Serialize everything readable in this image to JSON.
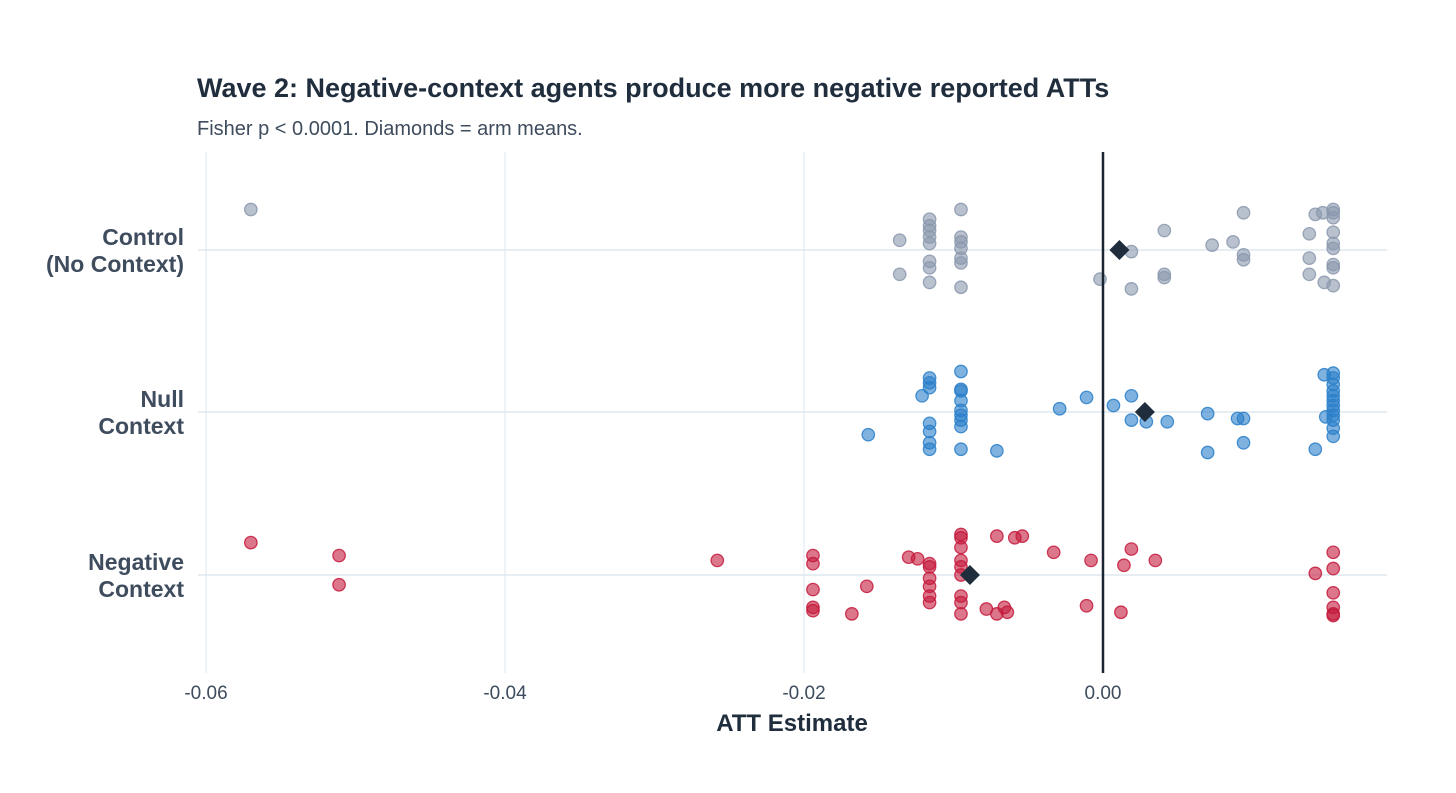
{
  "chart_data": {
    "type": "scatter",
    "title": "Wave 2: Negative-context agents produce more negative reported ATTs",
    "subtitle": "Fisher p < 0.0001. Diamonds = arm means.",
    "xlabel": "ATT Estimate",
    "ylabel": "",
    "xlim": [
      -0.0615,
      0.019
    ],
    "xticks": [
      -0.06,
      -0.04,
      -0.02,
      0.0
    ],
    "xtick_labels": [
      "-0.06",
      "-0.04",
      "-0.02",
      "0.00"
    ],
    "reference_line_x": 0.0,
    "grid": true,
    "legend": "none",
    "point_format": "[ATT estimate, vertical jitter in category units (+ = up)]",
    "mean_marker": "diamond",
    "colors": {
      "control": "#8a98ad",
      "null": "#2a7fc9",
      "negative": "#c41a3c",
      "mean": "#1f2d3d",
      "zero_line": "#1a2433",
      "grid": "#dde7ef"
    },
    "series": [
      {
        "key": "control",
        "name_lines": [
          "Control",
          "(No Context)"
        ],
        "mean": 0.0011,
        "points": [
          [
            -0.057,
            0.25
          ],
          [
            -0.0136,
            0.06
          ],
          [
            -0.0136,
            -0.15
          ],
          [
            -0.0116,
            0.19
          ],
          [
            -0.0116,
            0.15
          ],
          [
            -0.0116,
            0.12
          ],
          [
            -0.0116,
            0.08
          ],
          [
            -0.0116,
            0.04
          ],
          [
            -0.0116,
            -0.07
          ],
          [
            -0.0116,
            -0.11
          ],
          [
            -0.0116,
            -0.2
          ],
          [
            -0.0095,
            0.25
          ],
          [
            -0.0095,
            0.08
          ],
          [
            -0.0095,
            0.05
          ],
          [
            -0.0095,
            0.01
          ],
          [
            -0.0095,
            -0.05
          ],
          [
            -0.0095,
            -0.08
          ],
          [
            -0.0095,
            -0.23
          ],
          [
            -0.0002,
            -0.18
          ],
          [
            0.0019,
            -0.01
          ],
          [
            0.0019,
            -0.24
          ],
          [
            0.0041,
            0.12
          ],
          [
            0.0041,
            -0.15
          ],
          [
            0.0041,
            -0.17
          ],
          [
            0.0073,
            0.03
          ],
          [
            0.0087,
            0.05
          ],
          [
            0.0094,
            0.23
          ],
          [
            0.0094,
            -0.03
          ],
          [
            0.0094,
            -0.06
          ],
          [
            0.0138,
            0.1
          ],
          [
            0.0138,
            -0.05
          ],
          [
            0.0138,
            -0.15
          ],
          [
            0.0142,
            0.22
          ],
          [
            0.0147,
            0.23
          ],
          [
            0.0154,
            0.25
          ],
          [
            0.0154,
            0.23
          ],
          [
            0.0154,
            0.2
          ],
          [
            0.0154,
            0.11
          ],
          [
            0.0154,
            0.04
          ],
          [
            0.0154,
            0.01
          ],
          [
            0.0154,
            -0.09
          ],
          [
            0.0154,
            -0.11
          ],
          [
            0.0154,
            -0.22
          ],
          [
            0.0148,
            -0.2
          ]
        ]
      },
      {
        "key": "null",
        "name_lines": [
          "Null",
          "Context"
        ],
        "mean": 0.0028,
        "points": [
          [
            -0.0157,
            -0.14
          ],
          [
            -0.0121,
            0.1
          ],
          [
            -0.0116,
            0.21
          ],
          [
            -0.0116,
            0.18
          ],
          [
            -0.0116,
            0.15
          ],
          [
            -0.0116,
            -0.07
          ],
          [
            -0.0116,
            -0.12
          ],
          [
            -0.0116,
            -0.19
          ],
          [
            -0.0116,
            -0.23
          ],
          [
            -0.0095,
            0.25
          ],
          [
            -0.0095,
            0.14
          ],
          [
            -0.0095,
            0.13
          ],
          [
            -0.0095,
            0.07
          ],
          [
            -0.0095,
            0.01
          ],
          [
            -0.0095,
            -0.02
          ],
          [
            -0.0095,
            -0.05
          ],
          [
            -0.0095,
            -0.09
          ],
          [
            -0.0095,
            -0.23
          ],
          [
            -0.0071,
            -0.24
          ],
          [
            -0.0029,
            0.02
          ],
          [
            -0.0011,
            0.09
          ],
          [
            0.0007,
            0.04
          ],
          [
            0.0019,
            0.1
          ],
          [
            0.0019,
            -0.05
          ],
          [
            0.0029,
            -0.06
          ],
          [
            0.0043,
            -0.06
          ],
          [
            0.007,
            -0.01
          ],
          [
            0.007,
            -0.25
          ],
          [
            0.009,
            -0.04
          ],
          [
            0.0094,
            -0.04
          ],
          [
            0.0094,
            -0.19
          ],
          [
            0.0142,
            -0.23
          ],
          [
            0.0148,
            0.23
          ],
          [
            0.0154,
            0.24
          ],
          [
            0.0154,
            0.21
          ],
          [
            0.0154,
            0.17
          ],
          [
            0.0154,
            0.13
          ],
          [
            0.0154,
            0.1
          ],
          [
            0.0154,
            0.07
          ],
          [
            0.0154,
            0.04
          ],
          [
            0.0154,
            0.01
          ],
          [
            0.0154,
            -0.02
          ],
          [
            0.0154,
            -0.05
          ],
          [
            0.0154,
            -0.1
          ],
          [
            0.0154,
            -0.15
          ],
          [
            0.0149,
            -0.03
          ]
        ]
      },
      {
        "key": "negative",
        "name_lines": [
          "Negative",
          "Context"
        ],
        "mean": -0.0089,
        "points": [
          [
            -0.057,
            0.2
          ],
          [
            -0.0511,
            0.12
          ],
          [
            -0.0511,
            -0.06
          ],
          [
            -0.0258,
            0.09
          ],
          [
            -0.0194,
            0.12
          ],
          [
            -0.0194,
            0.07
          ],
          [
            -0.0194,
            -0.09
          ],
          [
            -0.0194,
            -0.2
          ],
          [
            -0.0194,
            -0.22
          ],
          [
            -0.0168,
            -0.24
          ],
          [
            -0.0158,
            -0.07
          ],
          [
            -0.013,
            0.11
          ],
          [
            -0.0124,
            0.1
          ],
          [
            -0.0116,
            0.07
          ],
          [
            -0.0116,
            0.05
          ],
          [
            -0.0116,
            -0.02
          ],
          [
            -0.0116,
            -0.07
          ],
          [
            -0.0116,
            -0.13
          ],
          [
            -0.0116,
            -0.17
          ],
          [
            -0.0095,
            0.25
          ],
          [
            -0.0095,
            0.23
          ],
          [
            -0.0095,
            0.17
          ],
          [
            -0.0095,
            0.09
          ],
          [
            -0.0095,
            0.05
          ],
          [
            -0.0095,
            0.0
          ],
          [
            -0.0095,
            -0.13
          ],
          [
            -0.0095,
            -0.17
          ],
          [
            -0.0095,
            -0.24
          ],
          [
            -0.0078,
            -0.21
          ],
          [
            -0.0071,
            -0.24
          ],
          [
            -0.0066,
            -0.2
          ],
          [
            -0.0064,
            -0.23
          ],
          [
            -0.0054,
            0.24
          ],
          [
            -0.0059,
            0.23
          ],
          [
            -0.0071,
            0.24
          ],
          [
            -0.0033,
            0.14
          ],
          [
            -0.0011,
            -0.19
          ],
          [
            -0.0008,
            0.09
          ],
          [
            0.0012,
            -0.23
          ],
          [
            0.0014,
            0.06
          ],
          [
            0.0019,
            0.16
          ],
          [
            0.0035,
            0.09
          ],
          [
            0.0142,
            0.01
          ],
          [
            0.0154,
            0.14
          ],
          [
            0.0154,
            0.04
          ],
          [
            0.0154,
            -0.11
          ],
          [
            0.0154,
            -0.2
          ],
          [
            0.0154,
            -0.24
          ],
          [
            0.0154,
            -0.25
          ]
        ]
      }
    ]
  }
}
